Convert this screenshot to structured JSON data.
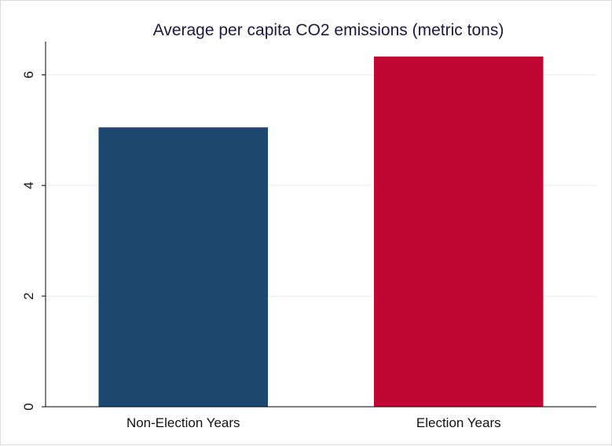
{
  "chart_data": {
    "type": "bar",
    "title": "Average per capita CO2 emissions (metric tons)",
    "xlabel": "",
    "ylabel": "",
    "categories": [
      "Non-Election Years",
      "Election Years"
    ],
    "values": [
      5.05,
      6.33
    ],
    "colors": [
      "#1c476e",
      "#c00733"
    ],
    "ylim": [
      0,
      6.6
    ],
    "yticks": [
      0,
      2,
      4,
      6
    ],
    "grid": true
  }
}
